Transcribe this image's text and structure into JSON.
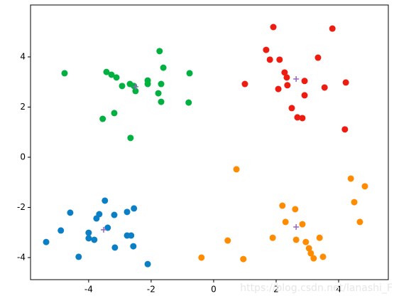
{
  "chart_data": {
    "type": "scatter",
    "xlim": [
      -5.86,
      5.59
    ],
    "ylim": [
      -4.88,
      6.07
    ],
    "xticks": [
      -4,
      -2,
      0,
      2,
      4
    ],
    "yticks": [
      -4,
      -2,
      0,
      2,
      4
    ],
    "grid": false,
    "series": [
      {
        "color": "#ee1c10",
        "marker": "o",
        "x": [
          1.91,
          3.8,
          1.68,
          1.8,
          2.11,
          3.34,
          2.27,
          2.34,
          1.0,
          2.36,
          2.07,
          2.91,
          3.55,
          4.23,
          2.91,
          2.5,
          2.68,
          2.84,
          4.2
        ],
        "values": [
          5.19,
          5.13,
          4.28,
          3.89,
          3.89,
          3.97,
          3.38,
          3.18,
          2.92,
          2.87,
          2.72,
          3.04,
          2.78,
          2.98,
          2.47,
          1.96,
          1.59,
          1.56,
          1.11
        ]
      },
      {
        "color": "#00b140",
        "marker": "o",
        "x": [
          -4.77,
          -1.73,
          -1.61,
          -3.43,
          -3.27,
          -3.11,
          -2.93,
          -2.68,
          -2.55,
          -2.5,
          -2.11,
          -2.11,
          -1.68,
          -1.77,
          -1.68,
          -0.77,
          -0.8,
          -3.18,
          -3.55,
          -2.66
        ],
        "values": [
          3.35,
          4.23,
          3.57,
          3.4,
          3.29,
          3.18,
          2.84,
          2.92,
          2.84,
          2.64,
          3.06,
          2.92,
          2.92,
          2.55,
          2.21,
          3.35,
          2.18,
          1.76,
          1.53,
          0.77
        ]
      },
      {
        "color": "#0a7fc6",
        "marker": "o",
        "x": [
          -3.48,
          -4.59,
          -3.66,
          -3.75,
          -2.77,
          -2.55,
          -3.18,
          -4.89,
          -3.39,
          -4.0,
          -4.0,
          -3.82,
          -2.77,
          -2.64,
          -3.16,
          -2.57,
          -5.36,
          -4.32,
          -2.11
        ],
        "values": [
          -1.73,
          -2.21,
          -2.27,
          -2.44,
          -2.18,
          -2.04,
          -2.3,
          -2.92,
          -2.81,
          -3.01,
          -3.23,
          -3.29,
          -3.12,
          -3.12,
          -3.6,
          -3.55,
          -3.38,
          -3.97,
          -4.26
        ]
      },
      {
        "color": "#ff8c00",
        "marker": "o",
        "x": [
          0.73,
          4.39,
          4.84,
          4.5,
          2.2,
          2.61,
          2.3,
          4.68,
          2.84,
          1.89,
          2.64,
          2.95,
          3.39,
          3.05,
          3.11,
          3.2,
          3.5,
          0.45,
          0.95,
          -0.39
        ],
        "values": [
          -0.48,
          -0.85,
          -1.16,
          -1.79,
          -1.93,
          -2.07,
          -2.58,
          -2.58,
          -2.67,
          -3.21,
          -3.29,
          -3.38,
          -3.21,
          -3.63,
          -3.83,
          -4.03,
          -3.97,
          -3.32,
          -4.06,
          -4.0
        ]
      },
      {
        "color": "#9467bd",
        "marker": "+",
        "x": [
          2.64,
          -2.5,
          -3.52,
          2.64
        ],
        "values": [
          3.12,
          2.81,
          -2.89,
          -2.78
        ]
      }
    ],
    "watermark": "https://blog.csdn.net/lanashi_F"
  }
}
